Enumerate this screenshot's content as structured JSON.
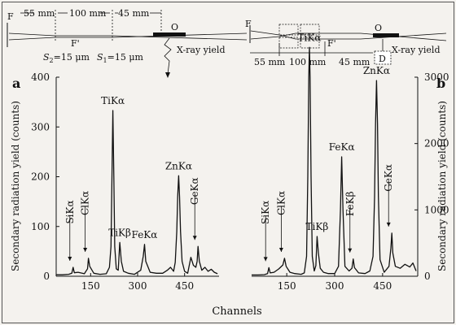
{
  "schematic_a": {
    "dims": [
      "55 mm",
      "100 mm",
      "45 mm"
    ],
    "slits": [
      "S",
      "=15 μm",
      "S",
      "=15 μm"
    ],
    "slit_sub": [
      "2",
      "1"
    ],
    "focus": "F",
    "focus_prime": "F'",
    "target": "O",
    "yield_label": "X-ray yield"
  },
  "schematic_b": {
    "dims": [
      "55 mm",
      "100 mm",
      "45 mm"
    ],
    "focus": "F",
    "focus_prime": "F'",
    "target": "O",
    "yield_label": "X-ray yield",
    "detector": "D"
  },
  "colors": {
    "ink": "#111111",
    "background": "#f4f2ee"
  },
  "chart_data": [
    {
      "id": "a",
      "type": "line",
      "panel_label": "a",
      "ylabel": "Secondary radiation yield (counts)",
      "ylim": [
        0,
        400
      ],
      "yticks": [
        0,
        100,
        200,
        300,
        400
      ],
      "xlim": [
        40,
        560
      ],
      "xticks": [
        150,
        300,
        450
      ],
      "peaks": [
        {
          "name": "SiKα",
          "channel": 94,
          "counts": 18,
          "arrow": true
        },
        {
          "name": "ClKα",
          "channel": 143,
          "counts": 36,
          "arrow": true
        },
        {
          "name": "TiKα",
          "channel": 221,
          "counts": 333,
          "arrow": false
        },
        {
          "name": "TiKβ",
          "channel": 243,
          "counts": 68,
          "arrow": false
        },
        {
          "name": "FeKα",
          "channel": 322,
          "counts": 64,
          "arrow": false
        },
        {
          "name": "ZnKα",
          "channel": 431,
          "counts": 202,
          "arrow": false
        },
        {
          "name": "GeKα",
          "channel": 493,
          "counts": 60,
          "arrow": true
        }
      ],
      "x": [
        40,
        60,
        80,
        90,
        94,
        98,
        110,
        130,
        140,
        143,
        147,
        160,
        180,
        200,
        210,
        215,
        218,
        221,
        224,
        227,
        232,
        238,
        243,
        248,
        255,
        270,
        290,
        310,
        318,
        322,
        326,
        340,
        360,
        380,
        395,
        405,
        415,
        420,
        425,
        428,
        431,
        434,
        437,
        442,
        450,
        460,
        470,
        478,
        486,
        490,
        493,
        497,
        505,
        515,
        525,
        535,
        545,
        555
      ],
      "y": [
        3,
        3,
        4,
        6,
        18,
        7,
        8,
        5,
        15,
        36,
        20,
        6,
        4,
        5,
        18,
        60,
        200,
        333,
        200,
        60,
        15,
        12,
        68,
        30,
        10,
        6,
        4,
        12,
        40,
        64,
        30,
        8,
        6,
        6,
        12,
        18,
        10,
        28,
        90,
        160,
        202,
        160,
        90,
        30,
        10,
        6,
        38,
        22,
        18,
        30,
        60,
        30,
        12,
        18,
        10,
        14,
        8,
        5
      ]
    },
    {
      "id": "b",
      "type": "line",
      "panel_label": "b",
      "ylabel": "Secondary radiation yield (counts)",
      "ylim": [
        0,
        3000
      ],
      "yticks": [
        0,
        1000,
        2000,
        3000
      ],
      "xlim": [
        40,
        560
      ],
      "xticks": [
        150,
        300,
        450
      ],
      "peaks": [
        {
          "name": "SiKα",
          "channel": 94,
          "counts": 130,
          "arrow": true
        },
        {
          "name": "ClKα",
          "channel": 143,
          "counts": 270,
          "arrow": true
        },
        {
          "name": "TiKα",
          "channel": 221,
          "counts": 3450,
          "arrow": false
        },
        {
          "name": "TiKβ",
          "channel": 245,
          "counts": 600,
          "arrow": false
        },
        {
          "name": "FeKα",
          "channel": 322,
          "counts": 1800,
          "arrow": false
        },
        {
          "name": "FeKβ",
          "channel": 358,
          "counts": 260,
          "arrow": true
        },
        {
          "name": "ZnKα",
          "channel": 431,
          "counts": 2950,
          "arrow": false
        },
        {
          "name": "GeKα",
          "channel": 479,
          "counts": 650,
          "arrow": true
        }
      ],
      "x": [
        40,
        60,
        80,
        90,
        94,
        98,
        110,
        125,
        138,
        143,
        148,
        160,
        175,
        195,
        205,
        212,
        216,
        219,
        221,
        223,
        226,
        230,
        236,
        241,
        245,
        249,
        255,
        265,
        280,
        300,
        312,
        318,
        322,
        326,
        332,
        345,
        354,
        358,
        362,
        375,
        395,
        410,
        420,
        425,
        428,
        431,
        434,
        437,
        442,
        455,
        470,
        476,
        479,
        482,
        490,
        505,
        520,
        535,
        545,
        555
      ],
      "y": [
        20,
        20,
        25,
        40,
        130,
        50,
        60,
        110,
        170,
        270,
        150,
        60,
        40,
        30,
        50,
        300,
        1500,
        3000,
        3450,
        3000,
        1500,
        300,
        80,
        160,
        600,
        350,
        120,
        60,
        40,
        40,
        150,
        1000,
        1800,
        1000,
        150,
        80,
        120,
        260,
        130,
        50,
        40,
        80,
        300,
        1200,
        2300,
        2950,
        2300,
        1200,
        250,
        60,
        150,
        420,
        650,
        350,
        150,
        120,
        180,
        140,
        200,
        80
      ]
    }
  ],
  "xlabel": "Channels"
}
